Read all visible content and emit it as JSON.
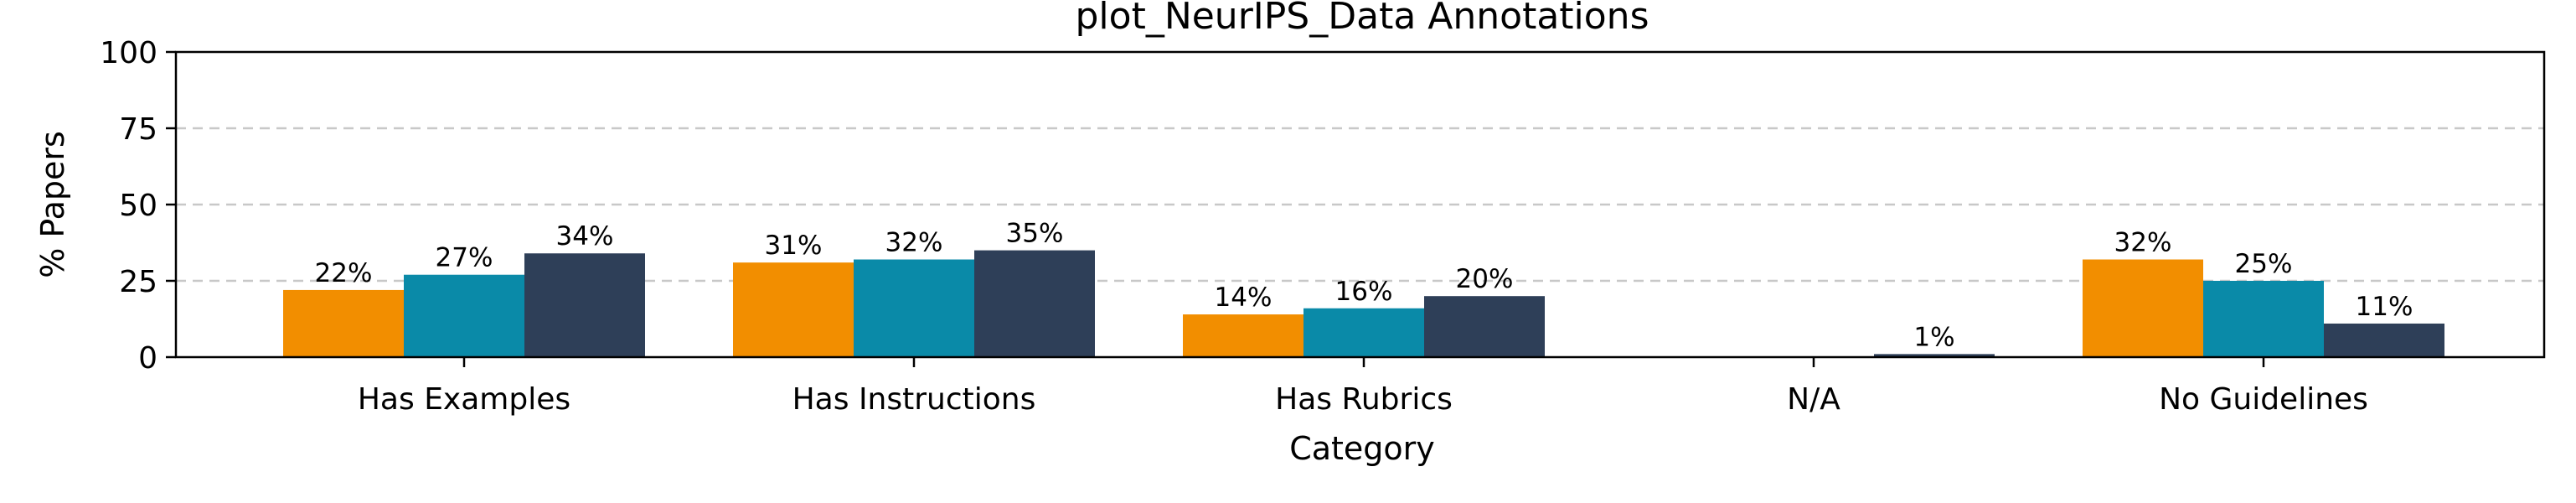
{
  "chart_data": {
    "type": "bar",
    "title": "plot_NeurIPS_Data Annotations",
    "xlabel": "Category",
    "ylabel": "% Papers",
    "ylim": [
      0,
      100
    ],
    "yticks": [
      0,
      25,
      50,
      75,
      100
    ],
    "grid": "y-dashed",
    "categories": [
      "Has Examples",
      "Has Instructions",
      "Has Rubrics",
      "N/A",
      "No Guidelines"
    ],
    "series": [
      {
        "values": [
          22,
          31,
          14,
          0,
          32
        ],
        "color": "#f28e00",
        "labels": [
          "22%",
          "31%",
          "14%",
          "",
          "32%"
        ]
      },
      {
        "values": [
          27,
          32,
          16,
          0,
          25
        ],
        "color": "#0a8aa8",
        "labels": [
          "27%",
          "32%",
          "16%",
          "",
          "25%"
        ]
      },
      {
        "values": [
          34,
          35,
          20,
          1,
          11
        ],
        "color": "#2e3f58",
        "labels": [
          "34%",
          "35%",
          "20%",
          "1%",
          "11%"
        ]
      }
    ]
  }
}
